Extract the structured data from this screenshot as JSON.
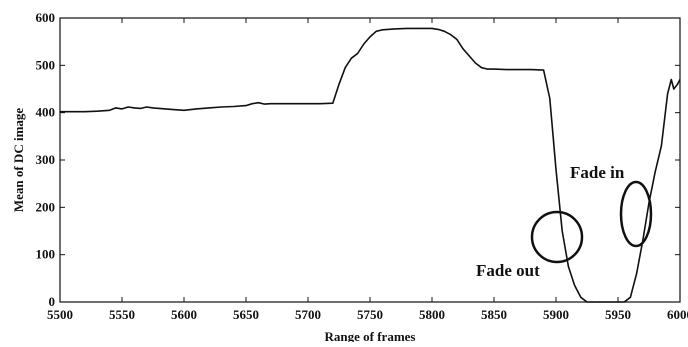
{
  "chart_data": {
    "type": "line",
    "xlabel": "Range of frames",
    "ylabel": "Mean of DC image",
    "xlim": [
      5500,
      6000
    ],
    "ylim": [
      0,
      600
    ],
    "xticks": [
      5500,
      5550,
      5600,
      5650,
      5700,
      5750,
      5800,
      5850,
      5900,
      5950,
      6000
    ],
    "yticks": [
      0,
      100,
      200,
      300,
      400,
      500,
      600
    ],
    "grid": false,
    "legend": "none",
    "line_color": "#111111",
    "series": [
      {
        "x": [
          5500,
          5510,
          5520,
          5530,
          5540,
          5545,
          5550,
          5555,
          5560,
          5565,
          5570,
          5575,
          5580,
          5590,
          5600,
          5610,
          5620,
          5630,
          5640,
          5650,
          5655,
          5660,
          5665,
          5670,
          5680,
          5690,
          5700,
          5710,
          5720,
          5725,
          5730,
          5735,
          5740,
          5745,
          5750,
          5755,
          5760,
          5770,
          5780,
          5790,
          5800,
          5805,
          5810,
          5815,
          5820,
          5825,
          5830,
          5835,
          5840,
          5845,
          5850,
          5860,
          5870,
          5880,
          5890,
          5895,
          5900,
          5905,
          5910,
          5915,
          5920,
          5925,
          5930,
          5935,
          5940,
          5945,
          5950,
          5955,
          5960,
          5965,
          5970,
          5975,
          5980,
          5985,
          5990,
          5993,
          5995,
          5998,
          6000
        ],
        "y": [
          402,
          402,
          402,
          403,
          405,
          410,
          408,
          412,
          410,
          409,
          412,
          410,
          409,
          407,
          405,
          408,
          410,
          412,
          413,
          415,
          419,
          421,
          418,
          419,
          419,
          419,
          419,
          419,
          420,
          460,
          495,
          515,
          525,
          545,
          560,
          572,
          575,
          577,
          578,
          578,
          578,
          576,
          572,
          565,
          555,
          535,
          520,
          505,
          495,
          492,
          492,
          491,
          491,
          491,
          490,
          430,
          280,
          150,
          75,
          35,
          10,
          0,
          0,
          0,
          0,
          0,
          0,
          0,
          10,
          60,
          130,
          210,
          275,
          330,
          440,
          470,
          450,
          460,
          470
        ]
      }
    ],
    "annotations": [
      {
        "text": "Fade out",
        "x": 5880,
        "y": 65
      },
      {
        "text": "Fade in",
        "x": 5965,
        "y": 265
      }
    ]
  }
}
